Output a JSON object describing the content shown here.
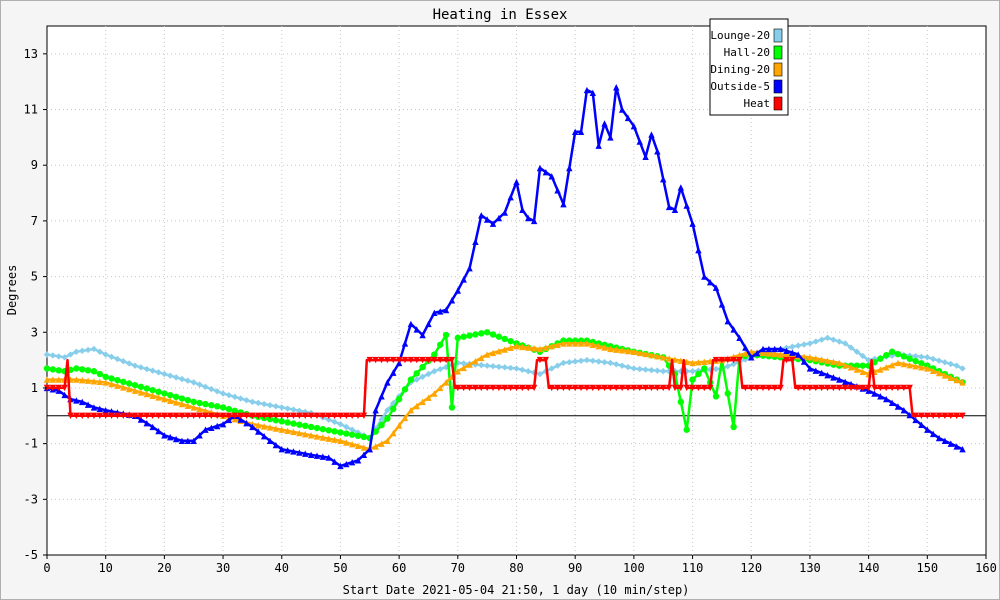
{
  "chart_data": {
    "type": "line",
    "title": "Heating in Essex",
    "xlabel": "Start Date 2021-05-04 21:50, 1 day (10 min/step)",
    "ylabel": "Degrees",
    "xlim": [
      0,
      160
    ],
    "ylim": [
      -5,
      14
    ],
    "xticks": [
      0,
      10,
      20,
      30,
      40,
      50,
      60,
      70,
      80,
      90,
      100,
      110,
      120,
      130,
      140,
      150,
      160
    ],
    "yticks": [
      -5,
      -3,
      -1,
      1,
      3,
      5,
      7,
      9,
      11,
      13
    ],
    "grid": true,
    "legend_position": "top-right",
    "series": [
      {
        "name": "Lounge-20",
        "color": "#87ceeb",
        "marker": "diamond",
        "points": [
          [
            0,
            2.2
          ],
          [
            3,
            2.1
          ],
          [
            5,
            2.3
          ],
          [
            8,
            2.4
          ],
          [
            10,
            2.2
          ],
          [
            15,
            1.8
          ],
          [
            20,
            1.5
          ],
          [
            25,
            1.2
          ],
          [
            30,
            0.8
          ],
          [
            35,
            0.5
          ],
          [
            40,
            0.3
          ],
          [
            45,
            0.1
          ],
          [
            50,
            -0.3
          ],
          [
            55,
            -0.8
          ],
          [
            58,
            0.2
          ],
          [
            62,
            1.2
          ],
          [
            66,
            1.6
          ],
          [
            70,
            1.9
          ],
          [
            75,
            1.8
          ],
          [
            80,
            1.7
          ],
          [
            84,
            1.5
          ],
          [
            88,
            1.9
          ],
          [
            92,
            2.0
          ],
          [
            96,
            1.9
          ],
          [
            100,
            1.7
          ],
          [
            105,
            1.6
          ],
          [
            110,
            1.6
          ],
          [
            115,
            1.7
          ],
          [
            120,
            2.1
          ],
          [
            125,
            2.4
          ],
          [
            130,
            2.6
          ],
          [
            133,
            2.8
          ],
          [
            136,
            2.6
          ],
          [
            140,
            2.0
          ],
          [
            145,
            2.2
          ],
          [
            150,
            2.1
          ],
          [
            155,
            1.8
          ],
          [
            156,
            1.7
          ]
        ]
      },
      {
        "name": "Hall-20",
        "color": "#00ff00",
        "marker": "circle",
        "points": [
          [
            0,
            1.7
          ],
          [
            3,
            1.6
          ],
          [
            5,
            1.7
          ],
          [
            8,
            1.6
          ],
          [
            10,
            1.4
          ],
          [
            15,
            1.1
          ],
          [
            20,
            0.8
          ],
          [
            25,
            0.5
          ],
          [
            30,
            0.3
          ],
          [
            35,
            0.0
          ],
          [
            40,
            -0.2
          ],
          [
            45,
            -0.4
          ],
          [
            50,
            -0.6
          ],
          [
            55,
            -0.8
          ],
          [
            58,
            -0.1
          ],
          [
            62,
            1.3
          ],
          [
            66,
            2.2
          ],
          [
            68,
            2.9
          ],
          [
            69,
            0.3
          ],
          [
            70,
            2.8
          ],
          [
            75,
            3.0
          ],
          [
            80,
            2.6
          ],
          [
            84,
            2.3
          ],
          [
            88,
            2.7
          ],
          [
            92,
            2.7
          ],
          [
            96,
            2.5
          ],
          [
            100,
            2.3
          ],
          [
            105,
            2.1
          ],
          [
            107,
            1.5
          ],
          [
            109,
            -0.5
          ],
          [
            110,
            1.3
          ],
          [
            112,
            1.7
          ],
          [
            114,
            0.7
          ],
          [
            115,
            2.0
          ],
          [
            117,
            -0.4
          ],
          [
            118,
            2.1
          ],
          [
            120,
            2.2
          ],
          [
            125,
            2.1
          ],
          [
            130,
            2.0
          ],
          [
            135,
            1.8
          ],
          [
            140,
            1.8
          ],
          [
            144,
            2.3
          ],
          [
            150,
            1.8
          ],
          [
            156,
            1.2
          ]
        ]
      },
      {
        "name": "Dining-20",
        "color": "#ffa500",
        "marker": "triangle",
        "points": [
          [
            0,
            1.3
          ],
          [
            5,
            1.3
          ],
          [
            10,
            1.2
          ],
          [
            15,
            0.9
          ],
          [
            20,
            0.6
          ],
          [
            25,
            0.3
          ],
          [
            30,
            0.0
          ],
          [
            35,
            -0.3
          ],
          [
            40,
            -0.5
          ],
          [
            45,
            -0.7
          ],
          [
            50,
            -0.9
          ],
          [
            55,
            -1.2
          ],
          [
            58,
            -0.9
          ],
          [
            62,
            0.2
          ],
          [
            66,
            0.8
          ],
          [
            70,
            1.6
          ],
          [
            75,
            2.2
          ],
          [
            80,
            2.5
          ],
          [
            84,
            2.4
          ],
          [
            88,
            2.6
          ],
          [
            92,
            2.6
          ],
          [
            96,
            2.4
          ],
          [
            100,
            2.3
          ],
          [
            105,
            2.1
          ],
          [
            110,
            1.9
          ],
          [
            115,
            2.0
          ],
          [
            120,
            2.3
          ],
          [
            125,
            2.2
          ],
          [
            130,
            2.1
          ],
          [
            135,
            1.9
          ],
          [
            140,
            1.5
          ],
          [
            145,
            1.9
          ],
          [
            150,
            1.7
          ],
          [
            156,
            1.2
          ]
        ]
      },
      {
        "name": "Outside-5",
        "color": "#0000ff",
        "marker": "triangle",
        "points": [
          [
            0,
            1.0
          ],
          [
            2,
            0.9
          ],
          [
            4,
            0.6
          ],
          [
            6,
            0.5
          ],
          [
            8,
            0.3
          ],
          [
            10,
            0.2
          ],
          [
            15,
            0.0
          ],
          [
            18,
            -0.4
          ],
          [
            20,
            -0.7
          ],
          [
            23,
            -0.9
          ],
          [
            25,
            -0.9
          ],
          [
            27,
            -0.5
          ],
          [
            30,
            -0.3
          ],
          [
            32,
            0.0
          ],
          [
            35,
            -0.4
          ],
          [
            38,
            -0.9
          ],
          [
            40,
            -1.2
          ],
          [
            45,
            -1.4
          ],
          [
            48,
            -1.5
          ],
          [
            50,
            -1.8
          ],
          [
            53,
            -1.6
          ],
          [
            55,
            -1.2
          ],
          [
            56,
            0.2
          ],
          [
            58,
            1.2
          ],
          [
            60,
            1.9
          ],
          [
            62,
            3.3
          ],
          [
            64,
            2.9
          ],
          [
            66,
            3.7
          ],
          [
            68,
            3.8
          ],
          [
            70,
            4.5
          ],
          [
            72,
            5.3
          ],
          [
            74,
            7.2
          ],
          [
            76,
            6.9
          ],
          [
            78,
            7.3
          ],
          [
            80,
            8.4
          ],
          [
            81,
            7.4
          ],
          [
            82,
            7.1
          ],
          [
            83,
            7.0
          ],
          [
            84,
            8.9
          ],
          [
            86,
            8.6
          ],
          [
            88,
            7.6
          ],
          [
            90,
            10.2
          ],
          [
            91,
            10.2
          ],
          [
            92,
            11.7
          ],
          [
            93,
            11.6
          ],
          [
            94,
            9.7
          ],
          [
            95,
            10.5
          ],
          [
            96,
            10.0
          ],
          [
            97,
            11.8
          ],
          [
            98,
            11.0
          ],
          [
            100,
            10.4
          ],
          [
            102,
            9.3
          ],
          [
            103,
            10.1
          ],
          [
            104,
            9.5
          ],
          [
            106,
            7.5
          ],
          [
            107,
            7.4
          ],
          [
            108,
            8.2
          ],
          [
            110,
            6.9
          ],
          [
            112,
            5.0
          ],
          [
            114,
            4.6
          ],
          [
            116,
            3.4
          ],
          [
            118,
            2.8
          ],
          [
            120,
            2.1
          ],
          [
            122,
            2.4
          ],
          [
            125,
            2.4
          ],
          [
            128,
            2.2
          ],
          [
            130,
            1.7
          ],
          [
            135,
            1.3
          ],
          [
            140,
            0.9
          ],
          [
            143,
            0.6
          ],
          [
            146,
            0.2
          ],
          [
            150,
            -0.5
          ],
          [
            152,
            -0.8
          ],
          [
            155,
            -1.1
          ],
          [
            156,
            -1.2
          ]
        ]
      },
      {
        "name": "Heat",
        "color": "#ff0000",
        "marker": "triangle-down",
        "points": [
          [
            0,
            1.0
          ],
          [
            3,
            1.0
          ],
          [
            3.5,
            2.0
          ],
          [
            4,
            0.0
          ],
          [
            54,
            0.0
          ],
          [
            54.5,
            2.0
          ],
          [
            69,
            2.0
          ],
          [
            69.5,
            1.0
          ],
          [
            83,
            1.0
          ],
          [
            83.5,
            2.0
          ],
          [
            85,
            2.0
          ],
          [
            85.5,
            1.0
          ],
          [
            106,
            1.0
          ],
          [
            106.5,
            2.0
          ],
          [
            107,
            1.0
          ],
          [
            108,
            1.0
          ],
          [
            108.5,
            2.0
          ],
          [
            109,
            1.0
          ],
          [
            113,
            1.0
          ],
          [
            113.5,
            2.0
          ],
          [
            118,
            2.0
          ],
          [
            118.5,
            1.0
          ],
          [
            125,
            1.0
          ],
          [
            125.5,
            2.0
          ],
          [
            127,
            2.0
          ],
          [
            127.5,
            1.0
          ],
          [
            140,
            1.0
          ],
          [
            140.5,
            2.0
          ],
          [
            141,
            1.0
          ],
          [
            147,
            1.0
          ],
          [
            147.5,
            0.0
          ],
          [
            156,
            0.0
          ]
        ]
      }
    ]
  }
}
